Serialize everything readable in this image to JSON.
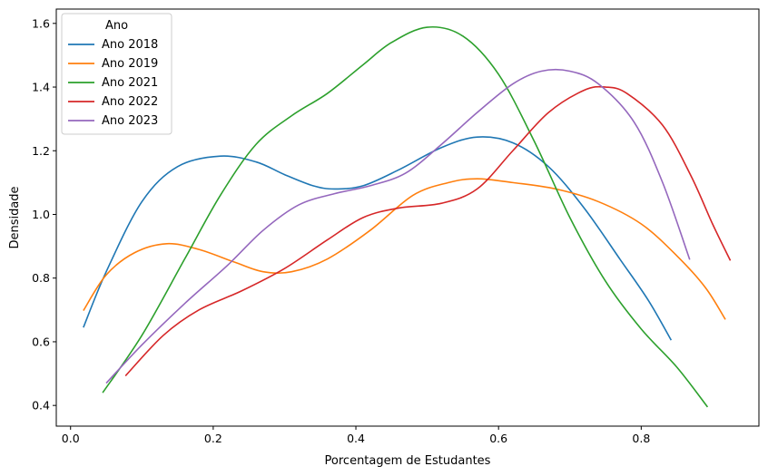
{
  "chart_data": {
    "type": "line",
    "title": "",
    "xlabel": "Porcentagem de Estudantes",
    "ylabel": "Densidade",
    "xlim": [
      -0.02,
      0.965
    ],
    "ylim": [
      0.335,
      1.645
    ],
    "xticks": [
      0.0,
      0.2,
      0.4,
      0.6,
      0.8
    ],
    "yticks": [
      0.4,
      0.6,
      0.8,
      1.0,
      1.2,
      1.4,
      1.6
    ],
    "xtick_labels": [
      "0.0",
      "0.2",
      "0.4",
      "0.6",
      "0.8"
    ],
    "ytick_labels": [
      "0.4",
      "0.6",
      "0.8",
      "1.0",
      "1.2",
      "1.4",
      "1.6"
    ],
    "grid": false,
    "legend": {
      "title": "Ano",
      "position": "top-left"
    },
    "series": [
      {
        "name": "Ano 2018",
        "color": "#1f77b4",
        "points": [
          [
            0.018,
            0.645
          ],
          [
            0.05,
            0.82
          ],
          [
            0.1,
            1.04
          ],
          [
            0.15,
            1.15
          ],
          [
            0.21,
            1.183
          ],
          [
            0.26,
            1.165
          ],
          [
            0.3,
            1.125
          ],
          [
            0.34,
            1.09
          ],
          [
            0.37,
            1.08
          ],
          [
            0.41,
            1.09
          ],
          [
            0.46,
            1.14
          ],
          [
            0.52,
            1.21
          ],
          [
            0.57,
            1.243
          ],
          [
            0.62,
            1.225
          ],
          [
            0.67,
            1.15
          ],
          [
            0.72,
            1.02
          ],
          [
            0.77,
            0.86
          ],
          [
            0.81,
            0.73
          ],
          [
            0.842,
            0.605
          ]
        ]
      },
      {
        "name": "Ano 2019",
        "color": "#ff7f0e",
        "points": [
          [
            0.018,
            0.698
          ],
          [
            0.05,
            0.81
          ],
          [
            0.09,
            0.88
          ],
          [
            0.135,
            0.908
          ],
          [
            0.18,
            0.89
          ],
          [
            0.23,
            0.85
          ],
          [
            0.27,
            0.82
          ],
          [
            0.31,
            0.82
          ],
          [
            0.36,
            0.86
          ],
          [
            0.42,
            0.95
          ],
          [
            0.48,
            1.06
          ],
          [
            0.53,
            1.1
          ],
          [
            0.57,
            1.112
          ],
          [
            0.62,
            1.1
          ],
          [
            0.68,
            1.08
          ],
          [
            0.74,
            1.04
          ],
          [
            0.8,
            0.97
          ],
          [
            0.85,
            0.87
          ],
          [
            0.89,
            0.77
          ],
          [
            0.918,
            0.67
          ]
        ]
      },
      {
        "name": "Ano 2021",
        "color": "#2ca02c",
        "points": [
          [
            0.045,
            0.44
          ],
          [
            0.1,
            0.62
          ],
          [
            0.16,
            0.86
          ],
          [
            0.21,
            1.06
          ],
          [
            0.26,
            1.22
          ],
          [
            0.31,
            1.31
          ],
          [
            0.36,
            1.38
          ],
          [
            0.41,
            1.47
          ],
          [
            0.45,
            1.54
          ],
          [
            0.5,
            1.588
          ],
          [
            0.55,
            1.56
          ],
          [
            0.6,
            1.44
          ],
          [
            0.65,
            1.23
          ],
          [
            0.7,
            0.99
          ],
          [
            0.75,
            0.79
          ],
          [
            0.8,
            0.64
          ],
          [
            0.85,
            0.52
          ],
          [
            0.893,
            0.395
          ]
        ]
      },
      {
        "name": "Ano 2022",
        "color": "#d62728",
        "points": [
          [
            0.077,
            0.493
          ],
          [
            0.13,
            0.62
          ],
          [
            0.18,
            0.7
          ],
          [
            0.24,
            0.76
          ],
          [
            0.3,
            0.83
          ],
          [
            0.36,
            0.92
          ],
          [
            0.41,
            0.99
          ],
          [
            0.46,
            1.02
          ],
          [
            0.52,
            1.035
          ],
          [
            0.57,
            1.08
          ],
          [
            0.62,
            1.2
          ],
          [
            0.67,
            1.32
          ],
          [
            0.72,
            1.39
          ],
          [
            0.75,
            1.4
          ],
          [
            0.78,
            1.38
          ],
          [
            0.83,
            1.28
          ],
          [
            0.87,
            1.12
          ],
          [
            0.9,
            0.97
          ],
          [
            0.925,
            0.855
          ]
        ]
      },
      {
        "name": "Ano 2023",
        "color": "#9467bd",
        "points": [
          [
            0.05,
            0.47
          ],
          [
            0.1,
            0.59
          ],
          [
            0.16,
            0.72
          ],
          [
            0.22,
            0.84
          ],
          [
            0.27,
            0.95
          ],
          [
            0.32,
            1.03
          ],
          [
            0.37,
            1.065
          ],
          [
            0.42,
            1.09
          ],
          [
            0.47,
            1.13
          ],
          [
            0.52,
            1.22
          ],
          [
            0.57,
            1.32
          ],
          [
            0.62,
            1.41
          ],
          [
            0.66,
            1.45
          ],
          [
            0.7,
            1.45
          ],
          [
            0.74,
            1.41
          ],
          [
            0.79,
            1.29
          ],
          [
            0.83,
            1.1
          ],
          [
            0.868,
            0.858
          ]
        ]
      }
    ]
  }
}
